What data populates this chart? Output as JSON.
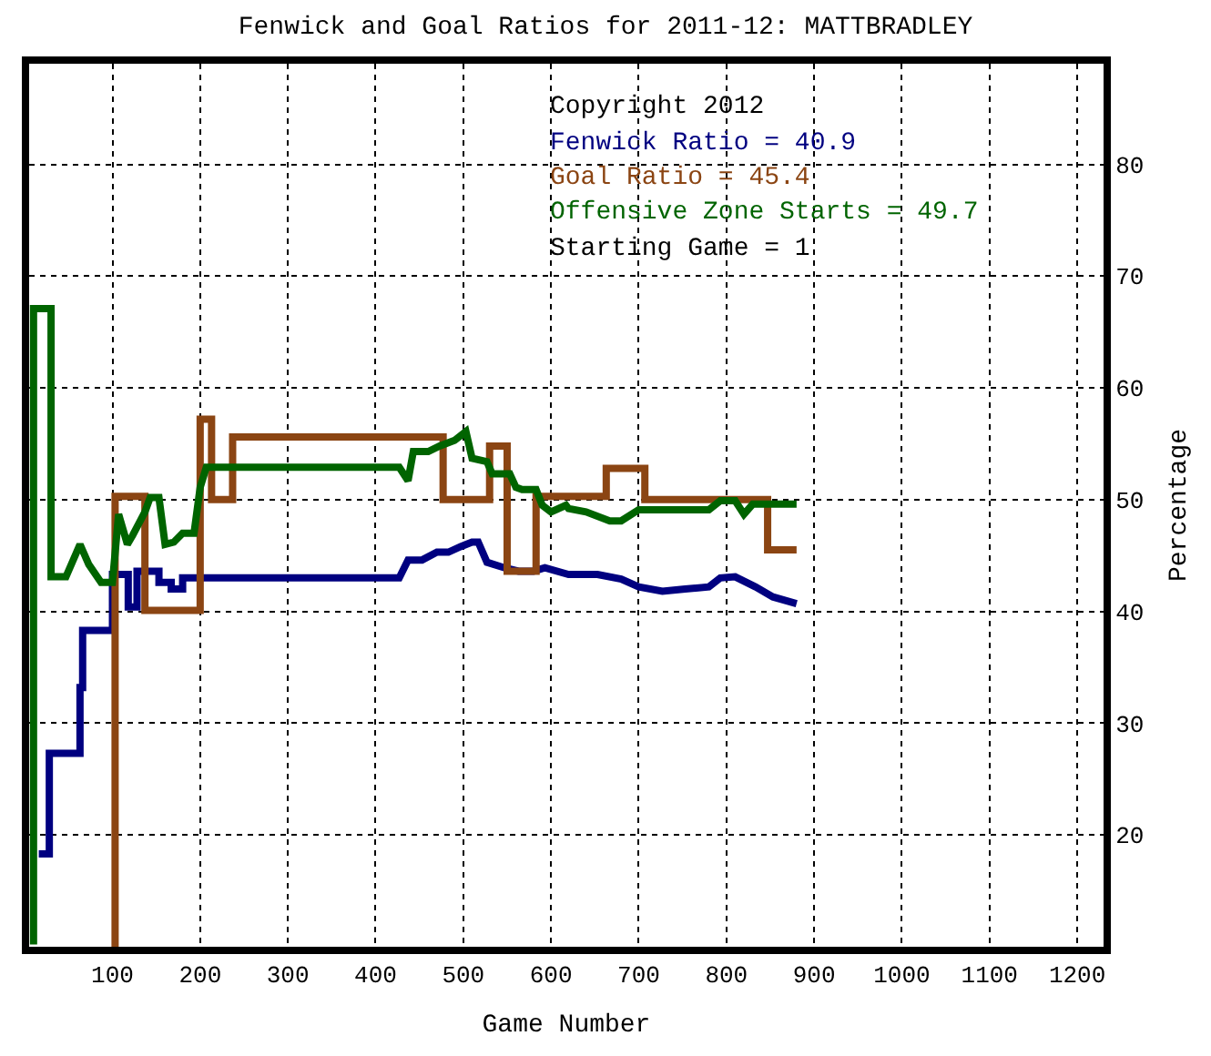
{
  "chart_data": {
    "type": "line",
    "title": "Fenwick and Goal Ratios for 2011-12: MATTBRADLEY",
    "xlabel": "Game Number",
    "ylabel": "Percentage",
    "annotations": [
      "Copyright 2012",
      "Fenwick Ratio = 40.9",
      "Goal Ratio = 45.4",
      "Offensive Zone Starts = 49.7",
      "Starting Game = 1"
    ],
    "xlim": [
      5,
      1230
    ],
    "xticks": [
      100,
      200,
      300,
      400,
      500,
      600,
      700,
      800,
      900,
      1000,
      1100,
      1200
    ],
    "ylim": [
      10,
      89
    ],
    "yticks": [
      20,
      30,
      40,
      50,
      60,
      70,
      80
    ],
    "grid": true,
    "marker": "none",
    "line_style": "solid",
    "series": [
      {
        "color": "#000080",
        "x": [
          16,
          28,
          28,
          63,
          63,
          66,
          66,
          100,
          100,
          118,
          118,
          128,
          128,
          153,
          153,
          167,
          167,
          180,
          180,
          190,
          190,
          427,
          437,
          453,
          470,
          483,
          497,
          510,
          517,
          527,
          547,
          563,
          580,
          593,
          620,
          653,
          680,
          700,
          727,
          753,
          780,
          793,
          810,
          833,
          853,
          880
        ],
        "values": [
          18.3,
          18.3,
          27.3,
          27.3,
          33.2,
          33.2,
          38.3,
          38.3,
          43.3,
          43.3,
          40.4,
          40.4,
          43.6,
          43.6,
          42.6,
          42.6,
          42,
          42,
          43,
          43,
          43,
          43,
          44.6,
          44.6,
          45.3,
          45.3,
          45.8,
          46.2,
          46.2,
          44.4,
          43.9,
          43.6,
          43.6,
          43.9,
          43.3,
          43.3,
          42.9,
          42.2,
          41.8,
          42,
          42.2,
          43,
          43.1,
          42.2,
          41.3,
          40.7
        ]
      },
      {
        "color": "#8b4513",
        "x": [
          103,
          103,
          137,
          137,
          200,
          200,
          213,
          213,
          237,
          237,
          477,
          477,
          530,
          530,
          550,
          550,
          583,
          583,
          663,
          663,
          707,
          707,
          847,
          847,
          880
        ],
        "values": [
          10,
          50.3,
          50.3,
          40.1,
          40.1,
          57.2,
          57.2,
          50,
          50,
          55.6,
          55.6,
          50,
          50,
          54.8,
          54.8,
          43.6,
          43.6,
          50.3,
          50.3,
          52.8,
          52.8,
          50,
          50,
          45.5,
          45.5
        ]
      },
      {
        "color": "#006400",
        "x": [
          10,
          10,
          30,
          30,
          47,
          63,
          73,
          87,
          100,
          107,
          117,
          123,
          137,
          143,
          153,
          160,
          170,
          180,
          193,
          200,
          207,
          213,
          227,
          427,
          437,
          443,
          460,
          473,
          490,
          503,
          510,
          527,
          533,
          553,
          560,
          567,
          583,
          590,
          600,
          617,
          620,
          640,
          667,
          680,
          700,
          780,
          793,
          810,
          820,
          830,
          880
        ],
        "values": [
          10.2,
          67.1,
          67.1,
          43.1,
          43.1,
          46,
          44.2,
          42.6,
          42.6,
          48.7,
          46,
          46.8,
          48.9,
          50.2,
          50.2,
          46,
          46.2,
          47,
          47,
          51.1,
          52.9,
          52.9,
          52.9,
          52.9,
          51.7,
          54.3,
          54.3,
          54.8,
          55.3,
          56.1,
          53.7,
          53.4,
          52.3,
          52.3,
          51.1,
          50.9,
          50.9,
          49.5,
          48.9,
          49.5,
          49.2,
          48.9,
          48.1,
          48.1,
          49.1,
          49.1,
          49.9,
          49.9,
          48.7,
          49.6,
          49.6
        ]
      }
    ]
  }
}
